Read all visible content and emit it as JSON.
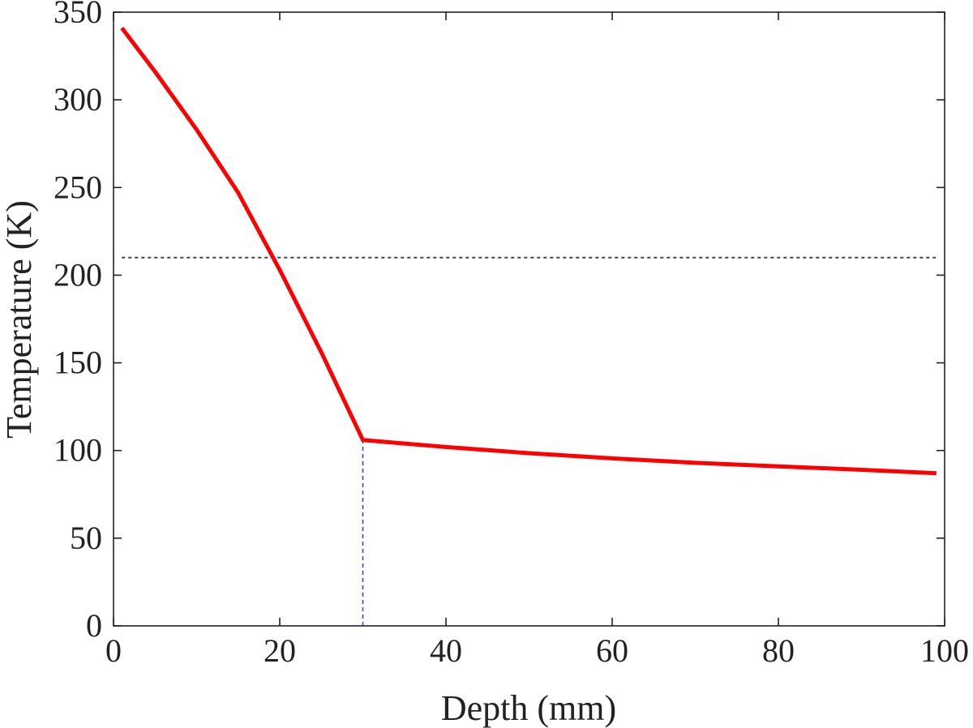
{
  "chart_data": {
    "type": "line",
    "title": "",
    "xlabel": "Depth (mm)",
    "ylabel": "Temperature (K)",
    "xlim": [
      0,
      100
    ],
    "ylim": [
      0,
      350
    ],
    "xticks": [
      0,
      20,
      40,
      60,
      80,
      100
    ],
    "yticks": [
      0,
      50,
      100,
      150,
      200,
      250,
      300,
      350
    ],
    "grid": false,
    "series": [
      {
        "color": "#ff0000",
        "x": [
          1,
          5,
          10,
          15,
          20,
          25,
          30,
          35,
          40,
          50,
          60,
          70,
          80,
          90,
          99
        ],
        "y": [
          341,
          316,
          283,
          247,
          203,
          156,
          106,
          104,
          102,
          98.5,
          95.5,
          93,
          91,
          89,
          87
        ]
      }
    ],
    "reference_lines": [
      {
        "orientation": "horizontal",
        "y": 210,
        "x_from": 1,
        "x_to": 99,
        "style": "dotted",
        "color": "#444444"
      },
      {
        "orientation": "vertical",
        "x": 30,
        "y_from": 0,
        "y_to": 106,
        "style": "dashed",
        "color": "#3333ff"
      }
    ],
    "axis_color": "#222222"
  }
}
